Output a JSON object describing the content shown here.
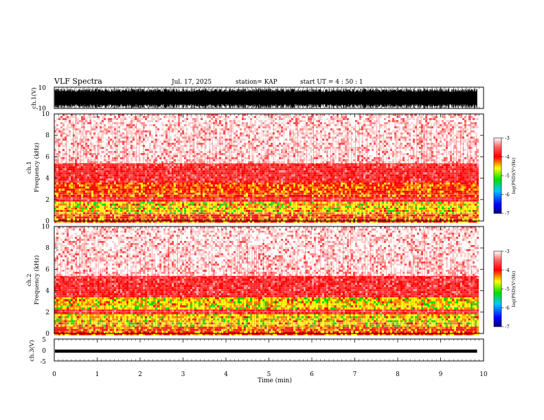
{
  "header": {
    "title": "VLF Spectra",
    "date": "Jul. 17, 2025",
    "station": "station= KAP",
    "start_ut": "start UT =  4 : 50 : 1"
  },
  "x_axis": {
    "label": "Time (min)",
    "ticks": [
      "0",
      "1",
      "2",
      "3",
      "4",
      "5",
      "6",
      "7",
      "8",
      "9",
      "10"
    ]
  },
  "colors": {
    "white": "#ffffff",
    "red": "#ff0000",
    "orange": "#ff8800",
    "yellow": "#ffff00",
    "green": "#00e000",
    "cyan": "#00c8ff",
    "blue": "#0000ff",
    "navy": "#000080",
    "black": "#000000"
  },
  "chart_data": [
    {
      "type": "line",
      "name": "ch1-waveform",
      "ylabel": "ch.1(V)",
      "ylim": [
        -10,
        10
      ],
      "y_ticks": [
        "10",
        "-10"
      ],
      "xlim": [
        0,
        10
      ],
      "x_end_min": 9.85,
      "description_values": {
        "typical_min": -10,
        "typical_max": 10
      }
    },
    {
      "type": "heatmap",
      "name": "ch1-spectrogram",
      "ylabel": "ch.1\nFrequency (kHz)",
      "ylabel_lines": [
        "ch.1",
        "Frequency (kHz)"
      ],
      "ylim": [
        0,
        10
      ],
      "y_ticks": [
        "0",
        "2",
        "4",
        "6",
        "8",
        "10"
      ],
      "xlim": [
        0,
        10
      ],
      "x_end_min": 9.85,
      "bands_khz": [
        {
          "from": 0.0,
          "to": 0.8,
          "level": "orange"
        },
        {
          "from": 0.8,
          "to": 2.0,
          "level": "yellow"
        },
        {
          "from": 2.0,
          "to": 2.4,
          "level": "red"
        },
        {
          "from": 2.4,
          "to": 3.6,
          "level": "orange"
        },
        {
          "from": 3.6,
          "to": 5.5,
          "level": "red"
        },
        {
          "from": 5.5,
          "to": 10.0,
          "level": "light-red"
        }
      ],
      "colorbar": {
        "title": "log(PSD)(V²/Hz)",
        "range": [
          -7,
          -3
        ],
        "ticks": [
          "-3",
          "-4",
          "-5",
          "-6",
          "-7"
        ]
      }
    },
    {
      "type": "heatmap",
      "name": "ch2-spectrogram",
      "ylabel": "ch.2\nFrequency (kHz)",
      "ylabel_lines": [
        "ch.2",
        "Frequency (kHz)"
      ],
      "ylim": [
        0,
        10
      ],
      "y_ticks": [
        "0",
        "2",
        "4",
        "6",
        "8",
        "10"
      ],
      "xlim": [
        0,
        10
      ],
      "x_end_min": 9.85,
      "bands_khz": [
        {
          "from": 0.0,
          "to": 0.8,
          "level": "orange"
        },
        {
          "from": 0.8,
          "to": 2.0,
          "level": "yellow"
        },
        {
          "from": 2.0,
          "to": 2.4,
          "level": "red"
        },
        {
          "from": 2.4,
          "to": 3.4,
          "level": "yellow"
        },
        {
          "from": 3.4,
          "to": 5.5,
          "level": "red"
        },
        {
          "from": 5.5,
          "to": 10.0,
          "level": "light-red"
        }
      ],
      "colorbar": {
        "title": "log(PSD)(V²/Hz)",
        "range": [
          -7,
          -3
        ],
        "ticks": [
          "-3",
          "-4",
          "-5",
          "-6",
          "-7"
        ]
      }
    },
    {
      "type": "line",
      "name": "ch3-waveform",
      "ylabel": "ch.3(V)",
      "ylim": [
        -5,
        5
      ],
      "y_ticks": [
        "5",
        "0",
        "-5"
      ],
      "xlim": [
        0,
        10
      ],
      "x_end_min": 9.85,
      "description_values": {
        "typical_min": -1.2,
        "typical_max": 0.2
      }
    }
  ]
}
